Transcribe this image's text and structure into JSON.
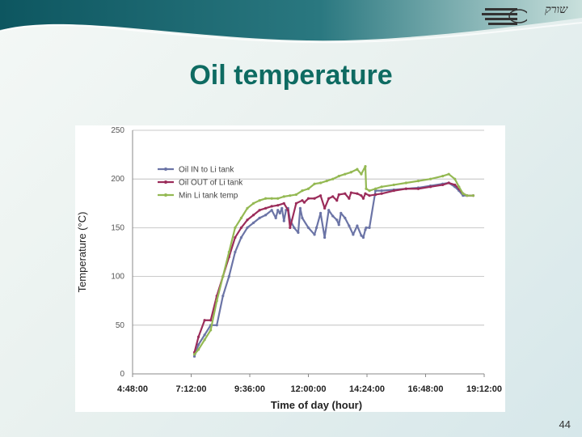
{
  "slide": {
    "title": "Oil temperature",
    "page_number": "44",
    "logo_text": "שורק"
  },
  "colors": {
    "title": "#0e6b62",
    "banner_dark": "#0d5660",
    "banner_light": "#c9e0dc"
  },
  "chart_data": {
    "type": "line",
    "title": "",
    "xlabel": "Time of day (hour)",
    "ylabel": "Temperature (°C)",
    "ylim": [
      0,
      250
    ],
    "yticks": [
      0,
      50,
      100,
      150,
      200,
      250
    ],
    "xlim": [
      "4:48:00",
      "19:12:00"
    ],
    "xticks": [
      "4:48:00",
      "7:12:00",
      "9:36:00",
      "12:00:00",
      "14:24:00",
      "16:48:00",
      "19:12:00"
    ],
    "grid": "horizontal",
    "legend": "top-left",
    "series": [
      {
        "name": "Oil IN to Li tank",
        "color": "#6b74a6",
        "x": [
          "7:20",
          "7:30",
          "7:45",
          "8:00",
          "8:15",
          "8:30",
          "8:45",
          "9:00",
          "9:15",
          "9:30",
          "9:45",
          "10:00",
          "10:15",
          "10:30",
          "10:40",
          "10:45",
          "10:50",
          "10:55",
          "11:00",
          "11:05",
          "11:10",
          "11:15",
          "11:25",
          "11:35",
          "11:40",
          "11:45",
          "12:00",
          "12:15",
          "12:20",
          "12:30",
          "12:40",
          "12:50",
          "13:00",
          "13:10",
          "13:15",
          "13:20",
          "13:30",
          "13:40",
          "13:50",
          "14:00",
          "14:10",
          "14:15",
          "14:20",
          "14:22",
          "14:30",
          "14:45",
          "15:00",
          "15:30",
          "16:00",
          "16:30",
          "17:00",
          "17:30",
          "17:45",
          "18:00",
          "18:10",
          "18:20",
          "18:30",
          "18:45"
        ],
        "y": [
          18,
          30,
          40,
          50,
          50,
          80,
          100,
          125,
          140,
          150,
          155,
          160,
          163,
          168,
          160,
          168,
          165,
          170,
          157,
          168,
          170,
          158,
          150,
          145,
          170,
          160,
          150,
          143,
          150,
          165,
          140,
          168,
          162,
          158,
          153,
          165,
          160,
          152,
          143,
          152,
          142,
          140,
          148,
          150,
          150,
          188,
          188,
          189,
          190,
          191,
          193,
          195,
          196,
          192,
          188,
          183,
          183,
          183
        ],
        "values_note": ""
      },
      {
        "name": "Oil OUT of Li tank",
        "color": "#9b2c5a",
        "x": [
          "7:20",
          "7:30",
          "7:45",
          "8:00",
          "8:15",
          "8:30",
          "8:45",
          "9:00",
          "9:15",
          "9:30",
          "9:45",
          "10:00",
          "10:15",
          "10:30",
          "10:45",
          "11:00",
          "11:10",
          "11:15",
          "11:30",
          "11:45",
          "11:50",
          "12:00",
          "12:15",
          "12:30",
          "12:40",
          "12:50",
          "13:00",
          "13:10",
          "13:15",
          "13:30",
          "13:40",
          "13:45",
          "14:00",
          "14:10",
          "14:15",
          "14:20",
          "14:30",
          "14:45",
          "15:00",
          "15:30",
          "16:00",
          "16:30",
          "17:00",
          "17:30",
          "17:45",
          "18:00",
          "18:10",
          "18:20",
          "18:30",
          "18:45"
        ],
        "y": [
          22,
          38,
          55,
          55,
          80,
          100,
          120,
          140,
          150,
          158,
          163,
          168,
          170,
          172,
          173,
          175,
          168,
          150,
          175,
          178,
          176,
          180,
          180,
          183,
          170,
          180,
          182,
          178,
          184,
          185,
          180,
          186,
          185,
          183,
          180,
          185,
          183,
          184,
          185,
          188,
          190,
          190,
          192,
          194,
          196,
          194,
          190,
          185,
          183,
          183
        ]
      },
      {
        "name": "Min Li tank temp",
        "color": "#94b953",
        "x": [
          "7:20",
          "7:30",
          "7:45",
          "8:00",
          "8:15",
          "8:30",
          "8:45",
          "9:00",
          "9:15",
          "9:30",
          "9:45",
          "10:00",
          "10:15",
          "10:30",
          "10:45",
          "11:00",
          "11:15",
          "11:30",
          "11:45",
          "12:00",
          "12:15",
          "12:30",
          "12:45",
          "13:00",
          "13:15",
          "13:30",
          "13:45",
          "14:00",
          "14:10",
          "14:20",
          "14:22",
          "14:30",
          "14:45",
          "15:00",
          "15:30",
          "16:00",
          "16:30",
          "17:00",
          "17:30",
          "17:45",
          "18:00",
          "18:10",
          "18:20",
          "18:30",
          "18:45"
        ],
        "y": [
          20,
          25,
          35,
          45,
          75,
          100,
          125,
          150,
          160,
          170,
          175,
          178,
          180,
          180,
          180,
          182,
          183,
          184,
          188,
          190,
          195,
          196,
          198,
          200,
          203,
          205,
          207,
          210,
          205,
          213,
          190,
          188,
          190,
          192,
          194,
          196,
          198,
          200,
          203,
          205,
          200,
          192,
          185,
          183,
          183
        ]
      }
    ]
  }
}
